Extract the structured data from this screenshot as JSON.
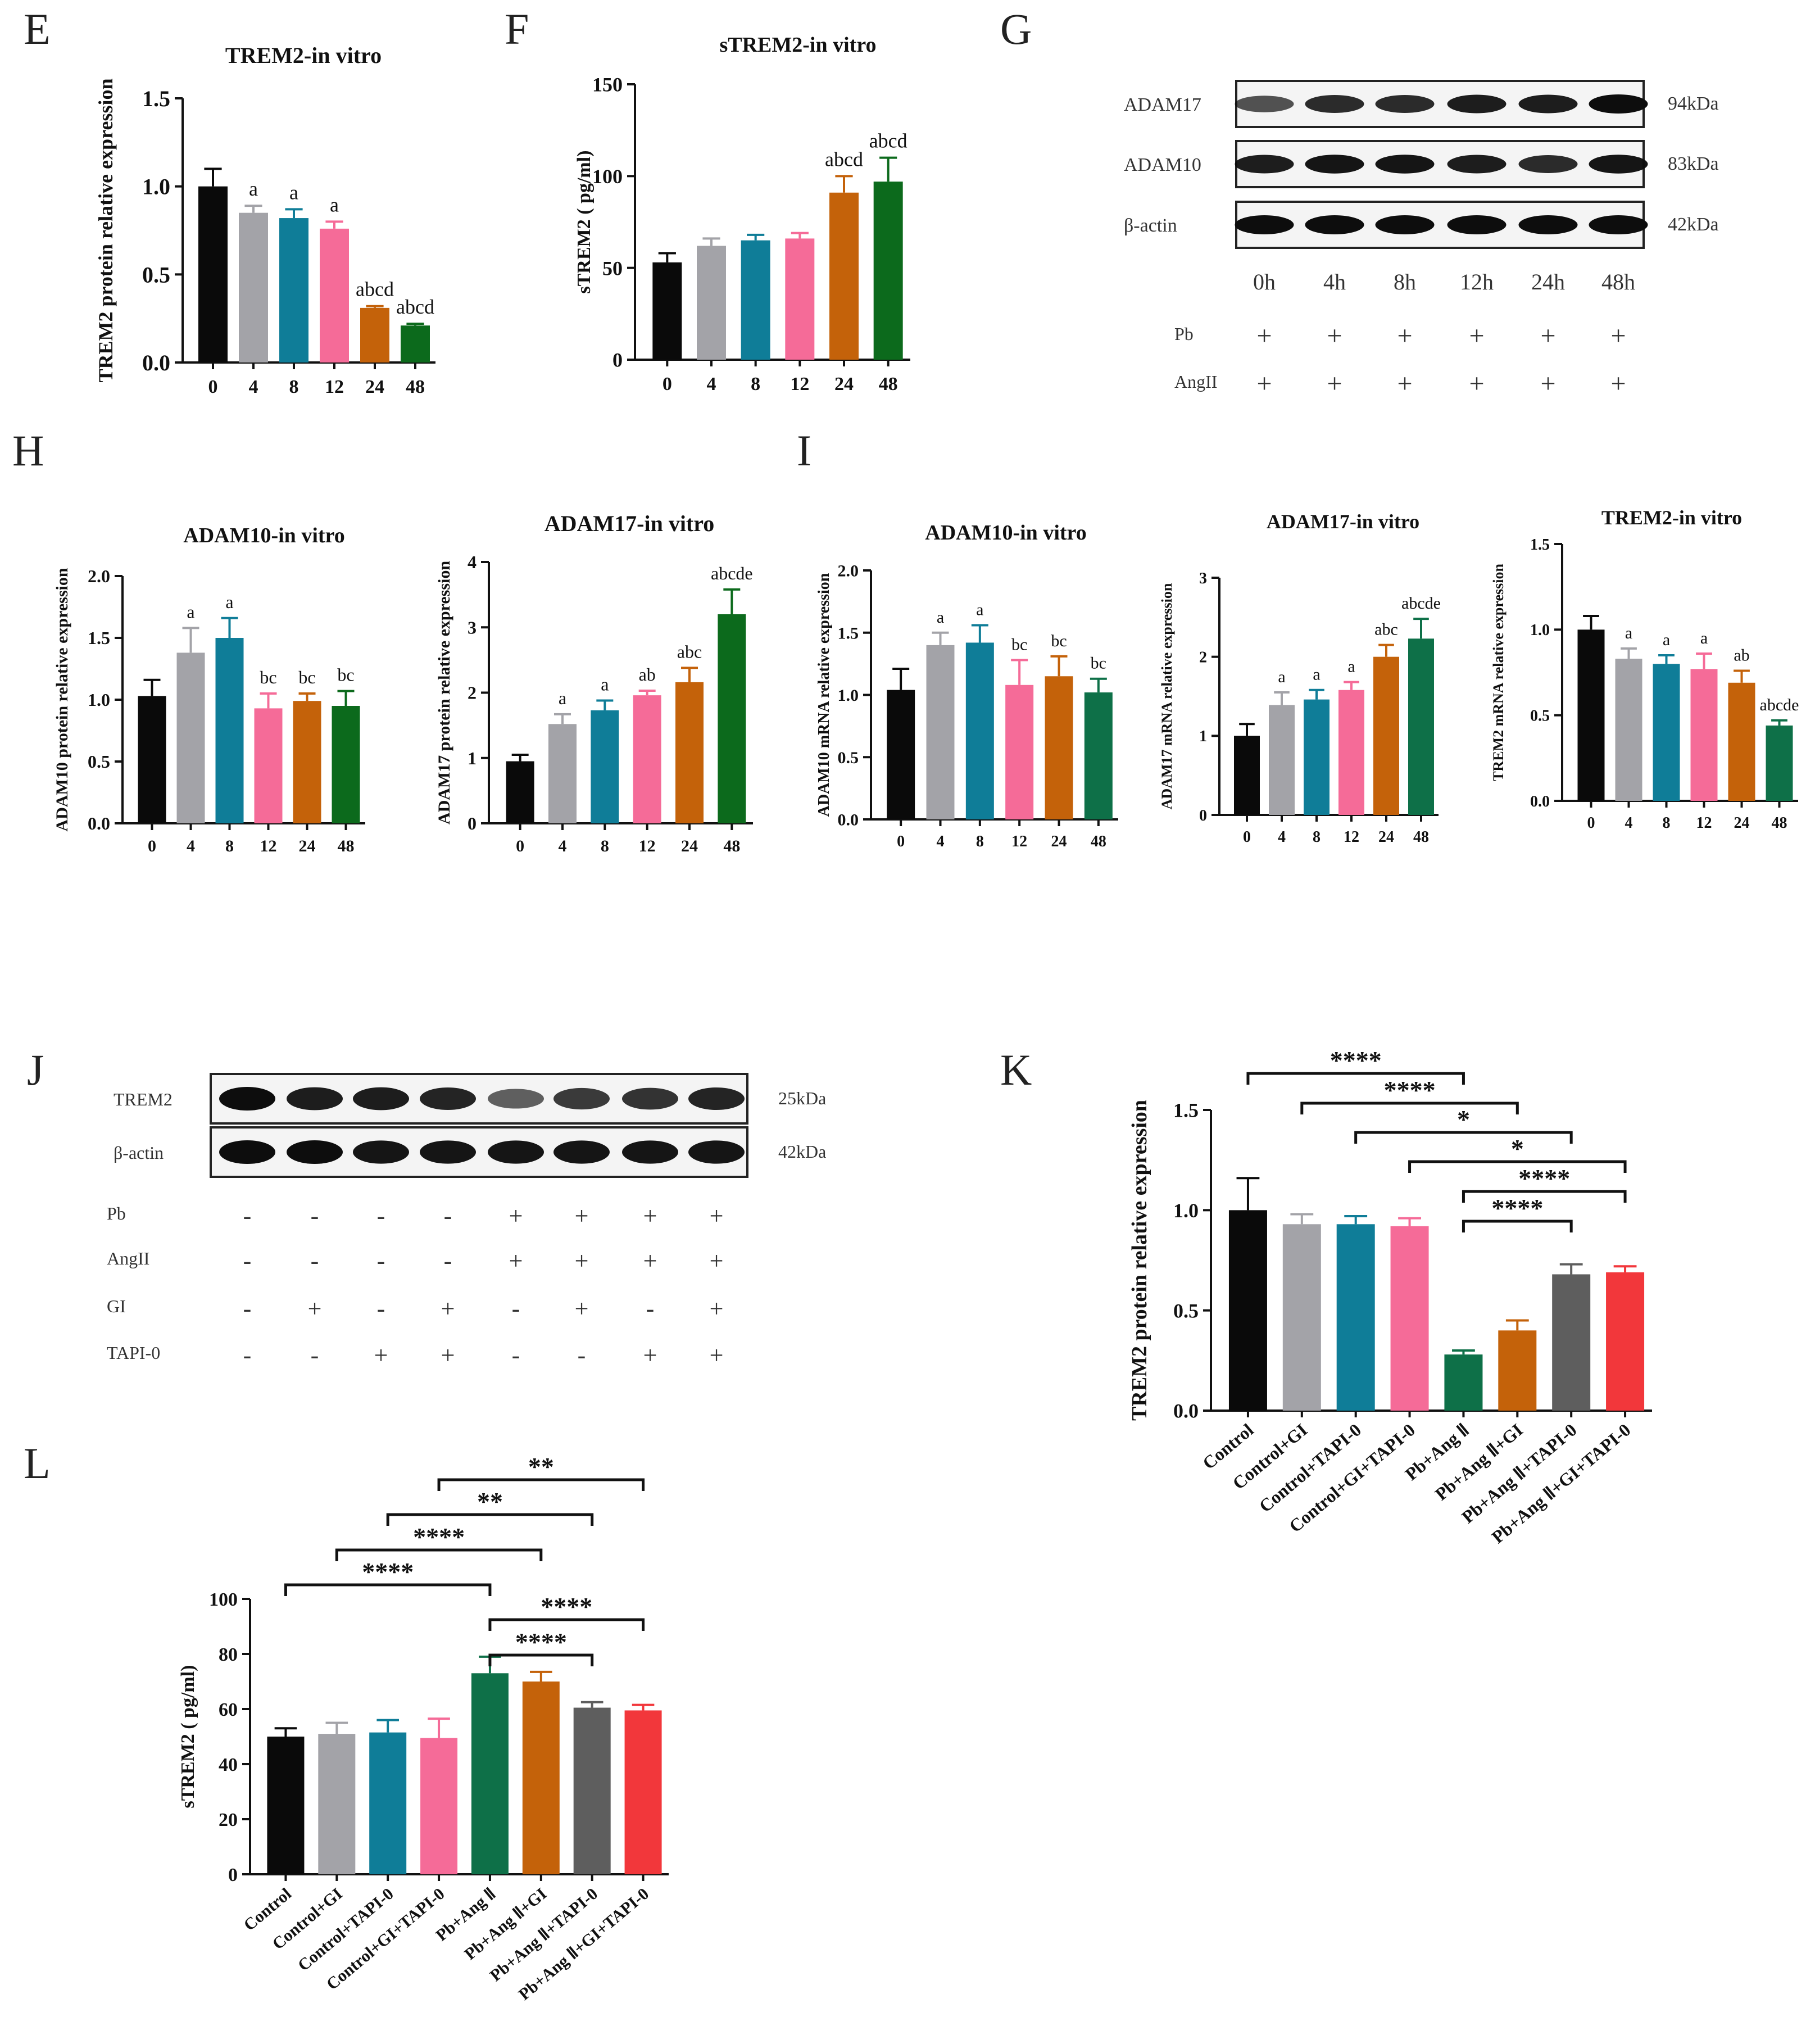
{
  "figure": {
    "panel_labels": [
      "E",
      "F",
      "G",
      "H",
      "I",
      "J",
      "K",
      "L"
    ]
  },
  "colors": {
    "black": "#0a0a0a",
    "gray": "#a3a3a8",
    "teal": "#0f7d98",
    "pink": "#f56b98",
    "orange": "#c4620a",
    "green": "#0c6a1c",
    "darkgreen": "#0e7048",
    "darkgray": "#5e5e5e",
    "red": "#f2373b"
  },
  "chart_data": [
    {
      "id": "E",
      "type": "bar",
      "title": "TREM2-in vitro",
      "ylabel": "TREM2 protein relative expression",
      "categories": [
        "0",
        "4",
        "8",
        "12",
        "24",
        "48"
      ],
      "values": [
        1.0,
        0.85,
        0.82,
        0.76,
        0.31,
        0.21
      ],
      "errors": [
        0.1,
        0.04,
        0.05,
        0.04,
        0.01,
        0.01
      ],
      "labels": [
        "",
        "a",
        "a",
        "a",
        "abcd",
        "abcd"
      ],
      "ylim": [
        0,
        1.5
      ],
      "yticks": [
        0.0,
        0.5,
        1.0,
        1.5
      ],
      "ytick_labels": [
        "0.0",
        "0.5",
        "1.0",
        "1.5"
      ],
      "colors": [
        "black",
        "gray",
        "teal",
        "pink",
        "orange",
        "green"
      ]
    },
    {
      "id": "F",
      "type": "bar",
      "title": "sTREM2-in vitro",
      "ylabel": "sTREM2 ( pg/ml)",
      "categories": [
        "0",
        "4",
        "8",
        "12",
        "24",
        "48"
      ],
      "values": [
        53,
        62,
        65,
        66,
        91,
        97
      ],
      "errors": [
        5,
        4,
        3,
        3,
        9,
        13
      ],
      "labels": [
        "",
        "",
        "",
        "",
        "abcd",
        "abcd"
      ],
      "ylim": [
        0,
        150
      ],
      "yticks": [
        0,
        50,
        100,
        150
      ],
      "ytick_labels": [
        "0",
        "50",
        "100",
        "150"
      ],
      "colors": [
        "black",
        "gray",
        "teal",
        "pink",
        "orange",
        "green"
      ]
    },
    {
      "id": "H1",
      "type": "bar",
      "title": "ADAM10-in vitro",
      "ylabel": "ADAM10 protein relative expression",
      "categories": [
        "0",
        "4",
        "8",
        "12",
        "24",
        "48"
      ],
      "values": [
        1.03,
        1.38,
        1.5,
        0.93,
        0.99,
        0.95
      ],
      "errors": [
        0.13,
        0.2,
        0.16,
        0.12,
        0.06,
        0.12
      ],
      "labels": [
        "",
        "a",
        "a",
        "bc",
        "bc",
        "bc"
      ],
      "ylim": [
        0,
        2.0
      ],
      "yticks": [
        0,
        0.5,
        1.0,
        1.5,
        2.0
      ],
      "ytick_labels": [
        "0.0",
        "0.5",
        "1.0",
        "1.5",
        "2.0"
      ],
      "colors": [
        "black",
        "gray",
        "teal",
        "pink",
        "orange",
        "green"
      ]
    },
    {
      "id": "H2",
      "type": "bar",
      "title": "ADAM17-in vitro",
      "ylabel": "ADAM17 protein relative expression",
      "categories": [
        "0",
        "4",
        "8",
        "12",
        "24",
        "48"
      ],
      "values": [
        0.95,
        1.52,
        1.73,
        1.96,
        2.16,
        3.2
      ],
      "errors": [
        0.1,
        0.15,
        0.15,
        0.07,
        0.22,
        0.38
      ],
      "labels": [
        "",
        "a",
        "a",
        "ab",
        "abc",
        "abcde"
      ],
      "ylim": [
        0,
        4
      ],
      "yticks": [
        0,
        1,
        2,
        3,
        4
      ],
      "ytick_labels": [
        "0",
        "1",
        "2",
        "3",
        "4"
      ],
      "colors": [
        "black",
        "gray",
        "teal",
        "pink",
        "orange",
        "green"
      ]
    },
    {
      "id": "I1",
      "type": "bar",
      "title": "ADAM10-in vitro",
      "ylabel": "ADAM10 mRNA relative expression",
      "categories": [
        "0",
        "4",
        "8",
        "12",
        "24",
        "48"
      ],
      "values": [
        1.04,
        1.4,
        1.42,
        1.08,
        1.15,
        1.02
      ],
      "errors": [
        0.17,
        0.1,
        0.14,
        0.2,
        0.16,
        0.11
      ],
      "labels": [
        "",
        "a",
        "a",
        "bc",
        "bc",
        "bc"
      ],
      "ylim": [
        0,
        2.0
      ],
      "yticks": [
        0,
        0.5,
        1.0,
        1.5,
        2.0
      ],
      "ytick_labels": [
        "0.0",
        "0.5",
        "1.0",
        "1.5",
        "2.0"
      ],
      "colors": [
        "black",
        "gray",
        "teal",
        "pink",
        "orange",
        "darkgreen"
      ]
    },
    {
      "id": "I2",
      "type": "bar",
      "title": "ADAM17-in vitro",
      "ylabel": "ADAM17 mRNA relative expression",
      "categories": [
        "0",
        "4",
        "8",
        "12",
        "24",
        "48"
      ],
      "values": [
        1.0,
        1.39,
        1.46,
        1.58,
        2.0,
        2.23
      ],
      "errors": [
        0.15,
        0.16,
        0.12,
        0.1,
        0.15,
        0.25
      ],
      "labels": [
        "",
        "a",
        "a",
        "a",
        "abc",
        "abcde"
      ],
      "ylim": [
        0,
        3
      ],
      "yticks": [
        0,
        1,
        2,
        3
      ],
      "ytick_labels": [
        "0",
        "1",
        "2",
        "3"
      ],
      "colors": [
        "black",
        "gray",
        "teal",
        "pink",
        "orange",
        "darkgreen"
      ]
    },
    {
      "id": "I3",
      "type": "bar",
      "title": "TREM2-in vitro",
      "ylabel": "TREM2 mRNA relative expression",
      "categories": [
        "0",
        "4",
        "8",
        "12",
        "24",
        "48"
      ],
      "values": [
        1.0,
        0.83,
        0.8,
        0.77,
        0.69,
        0.44
      ],
      "errors": [
        0.08,
        0.06,
        0.05,
        0.09,
        0.07,
        0.03
      ],
      "labels": [
        "",
        "a",
        "a",
        "a",
        "ab",
        "abcde"
      ],
      "ylim": [
        0,
        1.5
      ],
      "yticks": [
        0,
        0.5,
        1.0,
        1.5
      ],
      "ytick_labels": [
        "0.0",
        "0.5",
        "1.0",
        "1.5"
      ],
      "colors": [
        "black",
        "gray",
        "teal",
        "pink",
        "orange",
        "darkgreen"
      ]
    },
    {
      "id": "K",
      "type": "bar",
      "title": "",
      "ylabel": "TREM2 protein relative expression",
      "categories": [
        "Control",
        "Control+GI",
        "Control+TAPI-0",
        "Control+GI+TAPI-0",
        "Pb+Ang Ⅱ",
        "Pb+Ang Ⅱ+GI",
        "Pb+Ang Ⅱ+TAPI-0",
        "Pb+Ang Ⅱ+GI+TAPI-0"
      ],
      "values": [
        1.0,
        0.93,
        0.93,
        0.92,
        0.28,
        0.4,
        0.68,
        0.69
      ],
      "errors": [
        0.16,
        0.05,
        0.04,
        0.04,
        0.02,
        0.05,
        0.05,
        0.03
      ],
      "ylim": [
        0,
        1.5
      ],
      "yticks": [
        0,
        0.5,
        1.0,
        1.5
      ],
      "ytick_labels": [
        "0.0",
        "0.5",
        "1.0",
        "1.5"
      ],
      "colors": [
        "black",
        "gray",
        "teal",
        "pink",
        "darkgreen",
        "orange",
        "darkgray",
        "red"
      ],
      "comparisons": [
        {
          "from": 0,
          "to": 4,
          "label": "****"
        },
        {
          "from": 1,
          "to": 5,
          "label": "****"
        },
        {
          "from": 2,
          "to": 6,
          "label": "*"
        },
        {
          "from": 3,
          "to": 7,
          "label": "*"
        },
        {
          "from": 4,
          "to": 7,
          "label": "****"
        },
        {
          "from": 4,
          "to": 6,
          "label": "****"
        }
      ]
    },
    {
      "id": "L",
      "type": "bar",
      "title": "",
      "ylabel": "sTREM2 ( pg/ml)",
      "categories": [
        "Control",
        "Control+GI",
        "Control+TAPI-0",
        "Control+GI+TAPI-0",
        "Pb+Ang Ⅱ",
        "Pb+Ang Ⅱ+GI",
        "Pb+Ang Ⅱ+TAPI-0",
        "Pb+Ang Ⅱ+GI+TAPI-0"
      ],
      "values": [
        50,
        51,
        51.5,
        49.5,
        73,
        70,
        60.5,
        59.5
      ],
      "errors": [
        3,
        4,
        4.5,
        7,
        6,
        3.5,
        2,
        2
      ],
      "ylim": [
        0,
        100
      ],
      "yticks": [
        0,
        20,
        40,
        60,
        80,
        100
      ],
      "ytick_labels": [
        "0",
        "20",
        "40",
        "60",
        "80",
        "100"
      ],
      "colors": [
        "black",
        "gray",
        "teal",
        "pink",
        "darkgreen",
        "orange",
        "darkgray",
        "red"
      ],
      "comparisons": [
        {
          "from": 3,
          "to": 7,
          "label": "**"
        },
        {
          "from": 2,
          "to": 6,
          "label": "**"
        },
        {
          "from": 1,
          "to": 5,
          "label": "****"
        },
        {
          "from": 0,
          "to": 4,
          "label": "****"
        },
        {
          "from": 4,
          "to": 7,
          "label": "****"
        },
        {
          "from": 4,
          "to": 6,
          "label": "****"
        }
      ]
    }
  ],
  "blot_G": {
    "rows": [
      {
        "name": "ADAM17",
        "size": "94kDa",
        "intensity": [
          0.55,
          0.8,
          0.8,
          0.9,
          0.9,
          1.0
        ]
      },
      {
        "name": "ADAM10",
        "size": "83kDa",
        "intensity": [
          0.9,
          0.95,
          0.95,
          0.9,
          0.8,
          0.95
        ]
      },
      {
        "name": "β-actin",
        "size": "42kDa",
        "intensity": [
          1.0,
          1.0,
          1.0,
          1.0,
          1.0,
          1.0
        ]
      }
    ],
    "lanes": [
      "0h",
      "4h",
      "8h",
      "12h",
      "24h",
      "48h"
    ],
    "treatments": [
      {
        "name": "Pb",
        "signs": [
          "+",
          "+",
          "+",
          "+",
          "+",
          "+"
        ]
      },
      {
        "name": "AngII",
        "signs": [
          "+",
          "+",
          "+",
          "+",
          "+",
          "+"
        ]
      }
    ]
  },
  "blot_J": {
    "rows": [
      {
        "name": "TREM2",
        "size": "25kDa",
        "intensity": [
          1.0,
          0.9,
          0.9,
          0.85,
          0.45,
          0.7,
          0.75,
          0.85
        ]
      },
      {
        "name": "β-actin",
        "size": "42kDa",
        "intensity": [
          1.0,
          1.0,
          0.95,
          0.95,
          0.95,
          0.95,
          0.95,
          0.95
        ]
      }
    ],
    "treatments": [
      {
        "name": "Pb",
        "signs": [
          "-",
          "-",
          "-",
          "-",
          "+",
          "+",
          "+",
          "+"
        ]
      },
      {
        "name": "AngII",
        "signs": [
          "-",
          "-",
          "-",
          "-",
          "+",
          "+",
          "+",
          "+"
        ]
      },
      {
        "name": "GI",
        "signs": [
          "-",
          "+",
          "-",
          "+",
          "-",
          "+",
          "-",
          "+"
        ]
      },
      {
        "name": "TAPI-0",
        "signs": [
          "-",
          "-",
          "+",
          "+",
          "-",
          "-",
          "+",
          "+"
        ]
      }
    ]
  }
}
